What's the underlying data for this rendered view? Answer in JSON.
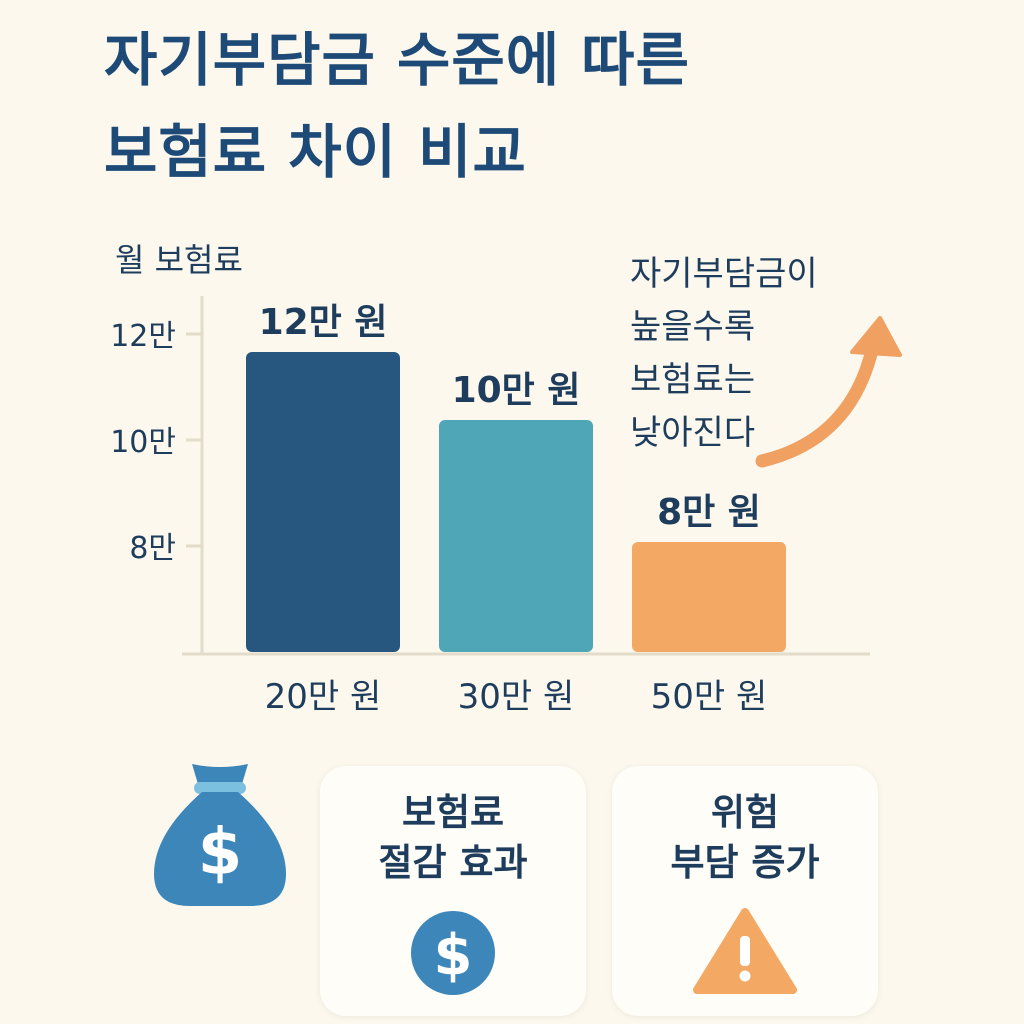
{
  "title": {
    "line1": "자기부담금 수준에 따른",
    "line2": "보험료 차이 비교"
  },
  "chart_data": {
    "type": "bar",
    "ylabel": "월 보험료",
    "y_ticks": [
      "12만",
      "10만",
      "8만"
    ],
    "categories": [
      "20만 원",
      "30만 원",
      "50만 원"
    ],
    "values": [
      12,
      10,
      8
    ],
    "value_labels": [
      "12만 원",
      "10만 원",
      "8만 원"
    ],
    "ylim": [
      6,
      12.5
    ],
    "colors": [
      "#27577f",
      "#4fa6b7",
      "#f3a863"
    ],
    "grid": false
  },
  "annotation": {
    "lines": [
      "자기부담금이",
      "높을수록",
      "보험료는",
      "낮아진다"
    ],
    "arrow_color": "#f0a060"
  },
  "cards": {
    "left": {
      "line1": "보험료",
      "line2": "절감 효과",
      "icon": "dollar-circle-icon"
    },
    "right": {
      "line1": "위험",
      "line2": "부담 증가",
      "icon": "warning-triangle-icon"
    }
  },
  "icons": {
    "money_bag": "money-bag-icon"
  },
  "colors": {
    "title": "#1e4a77",
    "background": "#fcf8ee",
    "accent_blue": "#3d86b9",
    "accent_orange": "#f3a863"
  }
}
